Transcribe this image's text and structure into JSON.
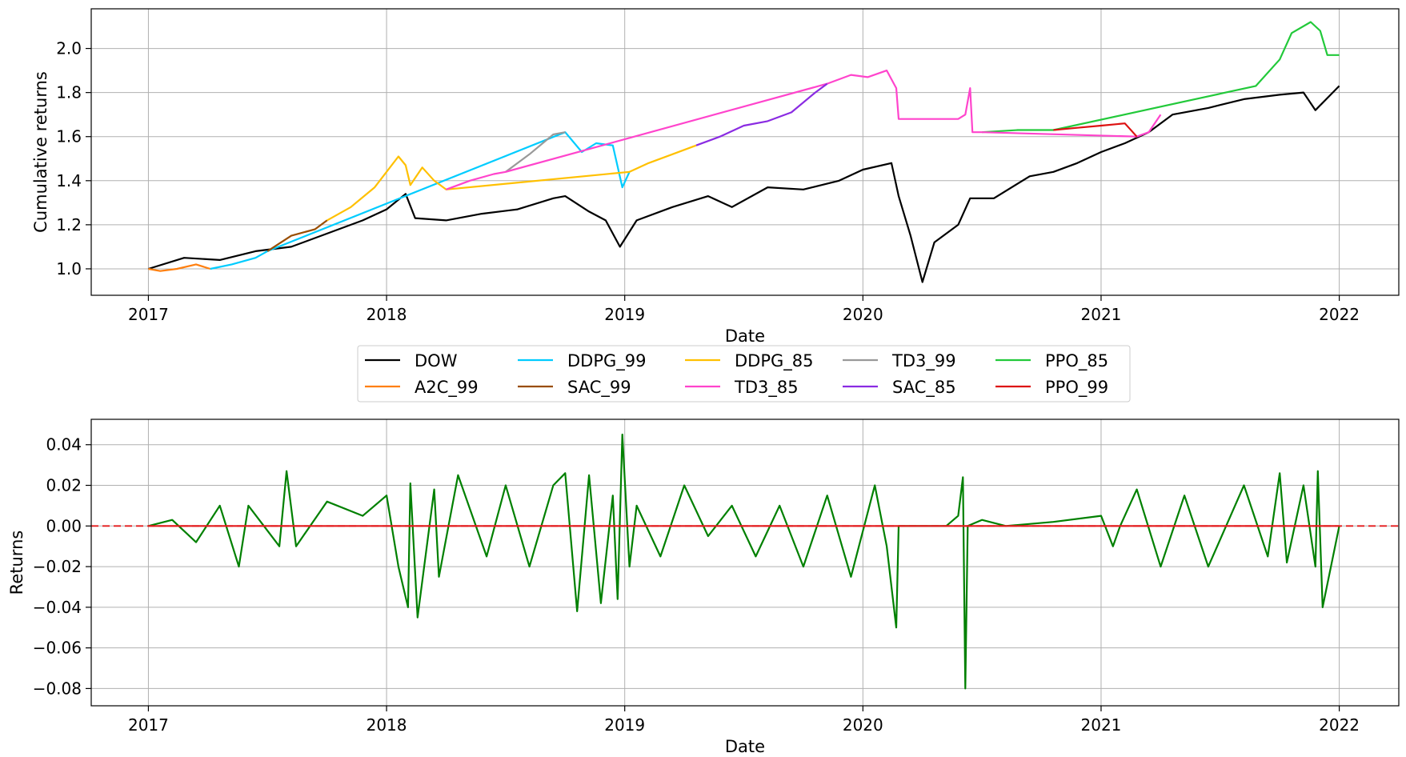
{
  "chart_data": [
    {
      "type": "line",
      "xlabel": "Date",
      "ylabel": "Cumulative returns",
      "xlim": [
        2016.76,
        2022.25
      ],
      "ylim": [
        0.88,
        2.18
      ],
      "x_ticks": [
        2017,
        2018,
        2019,
        2020,
        2021,
        2022
      ],
      "x_tick_labels": [
        "2017",
        "2018",
        "2019",
        "2020",
        "2021",
        "2022"
      ],
      "y_ticks": [
        1.0,
        1.2,
        1.4,
        1.6,
        1.8,
        2.0
      ],
      "y_tick_labels": [
        "1.0",
        "1.2",
        "1.4",
        "1.6",
        "1.8",
        "2.0"
      ],
      "grid": true,
      "legend_placement": "below",
      "series": [
        {
          "name": "DOW",
          "color": "#000000",
          "x": [
            2017.0,
            2017.15,
            2017.3,
            2017.45,
            2017.6,
            2017.75,
            2017.9,
            2018.0,
            2018.08,
            2018.12,
            2018.25,
            2018.4,
            2018.55,
            2018.7,
            2018.75,
            2018.85,
            2018.92,
            2018.98,
            2019.05,
            2019.2,
            2019.35,
            2019.45,
            2019.6,
            2019.75,
            2019.9,
            2020.0,
            2020.12,
            2020.15,
            2020.2,
            2020.25,
            2020.3,
            2020.4,
            2020.45,
            2020.55,
            2020.7,
            2020.8,
            2020.9,
            2021.0,
            2021.1,
            2021.2,
            2021.3,
            2021.45,
            2021.6,
            2021.75,
            2021.85,
            2021.9,
            2022.0
          ],
          "y": [
            1.0,
            1.05,
            1.04,
            1.08,
            1.1,
            1.16,
            1.22,
            1.27,
            1.34,
            1.23,
            1.22,
            1.25,
            1.27,
            1.32,
            1.33,
            1.26,
            1.22,
            1.1,
            1.22,
            1.28,
            1.33,
            1.28,
            1.37,
            1.36,
            1.4,
            1.45,
            1.48,
            1.33,
            1.15,
            0.94,
            1.12,
            1.2,
            1.32,
            1.32,
            1.42,
            1.44,
            1.48,
            1.53,
            1.57,
            1.62,
            1.7,
            1.73,
            1.77,
            1.79,
            1.8,
            1.72,
            1.83
          ]
        },
        {
          "name": "A2C_99",
          "color": "#ff7f0e",
          "x": [
            2017.0,
            2017.05,
            2017.12,
            2017.2,
            2017.26
          ],
          "y": [
            1.0,
            0.99,
            1.0,
            1.02,
            1.0
          ]
        },
        {
          "name": "DDPG_99",
          "color": "#00ccff",
          "x": [
            2017.26,
            2017.35,
            2017.45,
            2017.5,
            2018.75,
            2018.82,
            2018.88,
            2018.95,
            2018.99,
            2019.02
          ],
          "y": [
            1.0,
            1.02,
            1.05,
            1.08,
            1.62,
            1.53,
            1.57,
            1.56,
            1.37,
            1.44
          ]
        },
        {
          "name": "DDPG_85",
          "color": "#ffc000",
          "x": [
            2017.75,
            2017.85,
            2017.95,
            2018.05,
            2018.08,
            2018.1,
            2018.15,
            2018.2,
            2018.25,
            2019.02,
            2019.1,
            2019.2,
            2019.3
          ],
          "y": [
            1.22,
            1.28,
            1.37,
            1.51,
            1.47,
            1.38,
            1.46,
            1.4,
            1.36,
            1.44,
            1.48,
            1.52,
            1.56
          ]
        },
        {
          "name": "TD3_99",
          "color": "#999999",
          "x": [
            2018.5,
            2018.6,
            2018.7,
            2018.75
          ],
          "y": [
            1.44,
            1.52,
            1.61,
            1.62
          ]
        },
        {
          "name": "PPO_85",
          "color": "#22c93a",
          "x": [
            2020.5,
            2020.65,
            2020.8,
            2021.65,
            2021.75,
            2021.8,
            2021.88,
            2021.92,
            2021.95,
            2022.0
          ],
          "y": [
            1.62,
            1.63,
            1.63,
            1.83,
            1.95,
            2.07,
            2.12,
            2.08,
            1.97,
            1.97
          ]
        },
        {
          "name": "SAC_99",
          "color": "#994d00",
          "x": [
            2017.5,
            2017.6,
            2017.7,
            2017.75
          ],
          "y": [
            1.08,
            1.15,
            1.18,
            1.22
          ]
        },
        {
          "name": "TD3_85",
          "color": "#ff44cc",
          "x": [
            2018.25,
            2018.35,
            2018.45,
            2018.5,
            2019.85,
            2019.95,
            2020.02,
            2020.1,
            2020.14,
            2020.15,
            2020.4,
            2020.43,
            2020.45,
            2020.46,
            2020.5,
            2021.15,
            2021.2,
            2021.25
          ],
          "y": [
            1.36,
            1.4,
            1.43,
            1.44,
            1.84,
            1.88,
            1.87,
            1.9,
            1.82,
            1.68,
            1.68,
            1.7,
            1.82,
            1.62,
            1.62,
            1.6,
            1.62,
            1.7
          ]
        },
        {
          "name": "SAC_85",
          "color": "#8a2be2",
          "x": [
            2019.3,
            2019.4,
            2019.5,
            2019.6,
            2019.7,
            2019.8,
            2019.85
          ],
          "y": [
            1.56,
            1.6,
            1.65,
            1.67,
            1.71,
            1.8,
            1.84
          ]
        },
        {
          "name": "PPO_99",
          "color": "#dd1111",
          "x": [
            2020.8,
            2020.9,
            2021.0,
            2021.1,
            2021.15
          ],
          "y": [
            1.63,
            1.64,
            1.65,
            1.66,
            1.6
          ]
        }
      ]
    },
    {
      "type": "line",
      "xlabel": "Date",
      "ylabel": "Returns",
      "xlim": [
        2016.76,
        2022.25
      ],
      "ylim": [
        -0.0885,
        0.0525
      ],
      "x_ticks": [
        2017,
        2018,
        2019,
        2020,
        2021,
        2022
      ],
      "x_tick_labels": [
        "2017",
        "2018",
        "2019",
        "2020",
        "2021",
        "2022"
      ],
      "y_ticks": [
        0.04,
        0.02,
        0.0,
        -0.02,
        -0.04,
        -0.06,
        -0.08
      ],
      "y_tick_labels": [
        "0.04",
        "0.02",
        "0.00",
        "−0.02",
        "−0.04",
        "−0.06",
        "−0.08"
      ],
      "grid": true,
      "reference_line": {
        "y": 0.0,
        "color": "#e31a1c",
        "style": "dashed"
      },
      "series": [
        {
          "color": "#008000",
          "x": [
            2017.0,
            2017.1,
            2017.2,
            2017.3,
            2017.38,
            2017.42,
            2017.55,
            2017.58,
            2017.62,
            2017.75,
            2017.9,
            2018.0,
            2018.05,
            2018.09,
            2018.1,
            2018.13,
            2018.2,
            2018.22,
            2018.3,
            2018.42,
            2018.5,
            2018.6,
            2018.7,
            2018.75,
            2018.8,
            2018.85,
            2018.9,
            2018.95,
            2018.97,
            2018.99,
            2019.02,
            2019.05,
            2019.15,
            2019.25,
            2019.35,
            2019.45,
            2019.55,
            2019.65,
            2019.75,
            2019.85,
            2019.95,
            2020.05,
            2020.1,
            2020.14,
            2020.15,
            2020.2,
            2020.25,
            2020.35,
            2020.4,
            2020.42,
            2020.43,
            2020.44,
            2020.5,
            2020.6,
            2020.8,
            2021.0,
            2021.05,
            2021.08,
            2021.15,
            2021.25,
            2021.35,
            2021.45,
            2021.6,
            2021.7,
            2021.75,
            2021.78,
            2021.85,
            2021.9,
            2021.91,
            2021.93,
            2022.0
          ],
          "y": [
            0.0,
            0.003,
            -0.008,
            0.01,
            -0.02,
            0.01,
            -0.01,
            0.027,
            -0.01,
            0.012,
            0.005,
            0.015,
            -0.02,
            -0.04,
            0.021,
            -0.045,
            0.018,
            -0.025,
            0.025,
            -0.015,
            0.02,
            -0.02,
            0.02,
            0.026,
            -0.042,
            0.025,
            -0.038,
            0.015,
            -0.036,
            0.045,
            -0.02,
            0.01,
            -0.015,
            0.02,
            -0.005,
            0.01,
            -0.015,
            0.01,
            -0.02,
            0.015,
            -0.025,
            0.02,
            -0.01,
            -0.05,
            0.0,
            0.0,
            0.0,
            0.0,
            0.005,
            0.024,
            -0.08,
            0.0,
            0.003,
            0.0,
            0.002,
            0.005,
            -0.01,
            0.0,
            0.018,
            -0.02,
            0.015,
            -0.02,
            0.02,
            -0.015,
            0.026,
            -0.018,
            0.02,
            -0.02,
            0.027,
            -0.04,
            0.0
          ]
        },
        {
          "color": "#e31a1c",
          "x": [
            2017.0,
            2018.0,
            2019.0,
            2020.0,
            2021.0,
            2022.0
          ],
          "y": [
            0.0,
            0.0,
            0.0,
            0.0,
            0.0,
            0.0
          ]
        }
      ]
    }
  ],
  "legend": {
    "entries": [
      {
        "label": "DOW",
        "color": "#000000"
      },
      {
        "label": "A2C_99",
        "color": "#ff7f0e"
      },
      {
        "label": "DDPG_99",
        "color": "#00ccff"
      },
      {
        "label": "SAC_99",
        "color": "#994d00"
      },
      {
        "label": "DDPG_85",
        "color": "#ffc000"
      },
      {
        "label": "TD3_85",
        "color": "#ff44cc"
      },
      {
        "label": "TD3_99",
        "color": "#999999"
      },
      {
        "label": "SAC_85",
        "color": "#8a2be2"
      },
      {
        "label": "PPO_85",
        "color": "#22c93a"
      },
      {
        "label": "PPO_99",
        "color": "#dd1111"
      }
    ]
  }
}
